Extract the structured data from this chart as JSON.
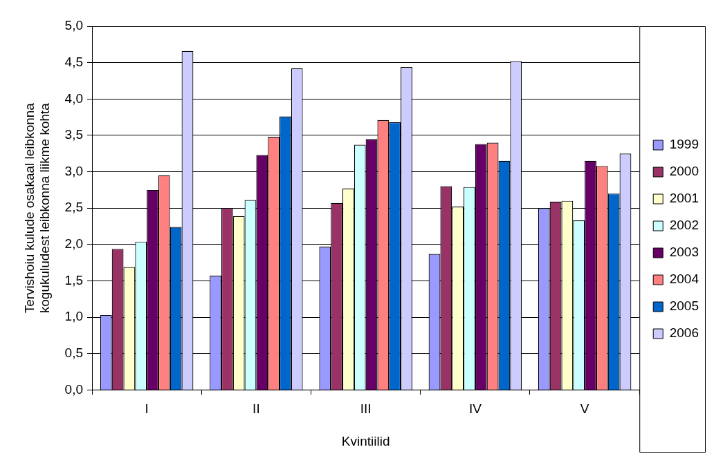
{
  "chart_data": {
    "type": "bar",
    "ylabel": "Tervishoiu kulude osakaal leibkonna kogukuludest leibkonna liikme kohta",
    "xlabel": "Kvintiilid",
    "categories": [
      "I",
      "II",
      "III",
      "IV",
      "V"
    ],
    "series": [
      {
        "name": "1999",
        "color": "#9999ff",
        "values": [
          1.03,
          1.57,
          1.97,
          1.87,
          2.5
        ]
      },
      {
        "name": "2000",
        "color": "#993366",
        "values": [
          1.94,
          2.5,
          2.57,
          2.8,
          2.59
        ]
      },
      {
        "name": "2001",
        "color": "#ffffcc",
        "values": [
          1.69,
          2.39,
          2.77,
          2.52,
          2.6
        ]
      },
      {
        "name": "2002",
        "color": "#ccffff",
        "values": [
          2.04,
          2.61,
          3.37,
          2.79,
          2.33
        ]
      },
      {
        "name": "2003",
        "color": "#660066",
        "values": [
          2.75,
          3.23,
          3.45,
          3.38,
          3.15
        ]
      },
      {
        "name": "2004",
        "color": "#ff8080",
        "values": [
          2.95,
          3.48,
          3.71,
          3.4,
          3.08
        ]
      },
      {
        "name": "2005",
        "color": "#0066cc",
        "values": [
          2.24,
          3.76,
          3.68,
          3.15,
          2.7
        ]
      },
      {
        "name": "2006",
        "color": "#ccccff",
        "values": [
          4.66,
          4.42,
          4.44,
          4.52,
          3.25
        ]
      }
    ],
    "ylim": [
      0,
      5
    ],
    "yticks": [
      {
        "value": 0,
        "label": "0,0"
      },
      {
        "value": 0.5,
        "label": "0,5"
      },
      {
        "value": 1,
        "label": "1,0"
      },
      {
        "value": 1.5,
        "label": "1,5"
      },
      {
        "value": 2,
        "label": "2,0"
      },
      {
        "value": 2.5,
        "label": "2,5"
      },
      {
        "value": 3,
        "label": "3,0"
      },
      {
        "value": 3.5,
        "label": "3,5"
      },
      {
        "value": 4,
        "label": "4,0"
      },
      {
        "value": 4.5,
        "label": "4,5"
      },
      {
        "value": 5,
        "label": "5,0"
      }
    ],
    "grid": "y",
    "legend": "right"
  }
}
